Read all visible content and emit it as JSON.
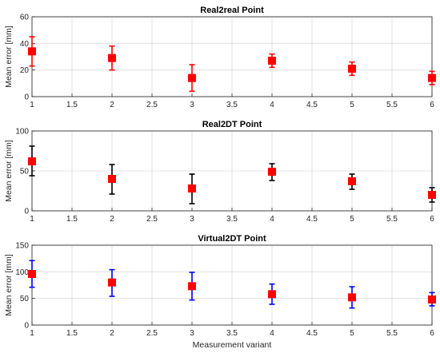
{
  "chart_data": [
    {
      "type": "errorbar",
      "title": "Real2real Point",
      "ylabel": "Mean error [mm]",
      "xlabel": "",
      "xlim": [
        1,
        6
      ],
      "ylim": [
        0,
        60
      ],
      "xticks": [
        "1",
        "1.5",
        "2",
        "2.5",
        "3",
        "3.5",
        "4",
        "4.5",
        "5",
        "5.5",
        "6"
      ],
      "yticks": [
        "0",
        "20",
        "40",
        "60"
      ],
      "grid": true,
      "marker_color": "#ff0000",
      "errorbar_color": "#ff0000",
      "series": [
        {
          "x": [
            1,
            2,
            3,
            4,
            5,
            6
          ],
          "values": [
            34,
            29,
            14,
            27,
            21,
            14
          ],
          "lower": [
            23,
            20,
            4,
            22,
            16,
            9
          ],
          "upper": [
            45,
            38,
            24,
            32,
            26,
            19
          ]
        }
      ]
    },
    {
      "type": "errorbar",
      "title": "Real2DT Point",
      "ylabel": "Mean error [mm]",
      "xlabel": "",
      "xlim": [
        1,
        6
      ],
      "ylim": [
        0,
        100
      ],
      "xticks": [
        "1",
        "1.5",
        "2",
        "2.5",
        "3",
        "3.5",
        "4",
        "4.5",
        "5",
        "5.5",
        "6"
      ],
      "yticks": [
        "0",
        "50",
        "100"
      ],
      "grid": true,
      "marker_color": "#ff0000",
      "errorbar_color": "#000000",
      "series": [
        {
          "x": [
            1,
            2,
            3,
            4,
            5,
            6
          ],
          "values": [
            62,
            40,
            28,
            49,
            37,
            20
          ],
          "lower": [
            44,
            21,
            9,
            38,
            27,
            11
          ],
          "upper": [
            81,
            58,
            46,
            59,
            46,
            29
          ]
        }
      ]
    },
    {
      "type": "errorbar",
      "title": "Virtual2DT Point",
      "ylabel": "Mean error [mm]",
      "xlabel": "Measurement variant",
      "xlim": [
        1,
        6
      ],
      "ylim": [
        0,
        150
      ],
      "xticks": [
        "1",
        "1.5",
        "2",
        "2.5",
        "3",
        "3.5",
        "4",
        "4.5",
        "5",
        "5.5",
        "6"
      ],
      "yticks": [
        "0",
        "50",
        "100",
        "150"
      ],
      "grid": true,
      "marker_color": "#ff0000",
      "errorbar_color": "#0000ff",
      "series": [
        {
          "x": [
            1,
            2,
            3,
            4,
            5,
            6
          ],
          "values": [
            96,
            80,
            73,
            58,
            52,
            48
          ],
          "lower": [
            71,
            54,
            47,
            39,
            32,
            36
          ],
          "upper": [
            121,
            104,
            99,
            77,
            72,
            61
          ]
        }
      ]
    }
  ]
}
